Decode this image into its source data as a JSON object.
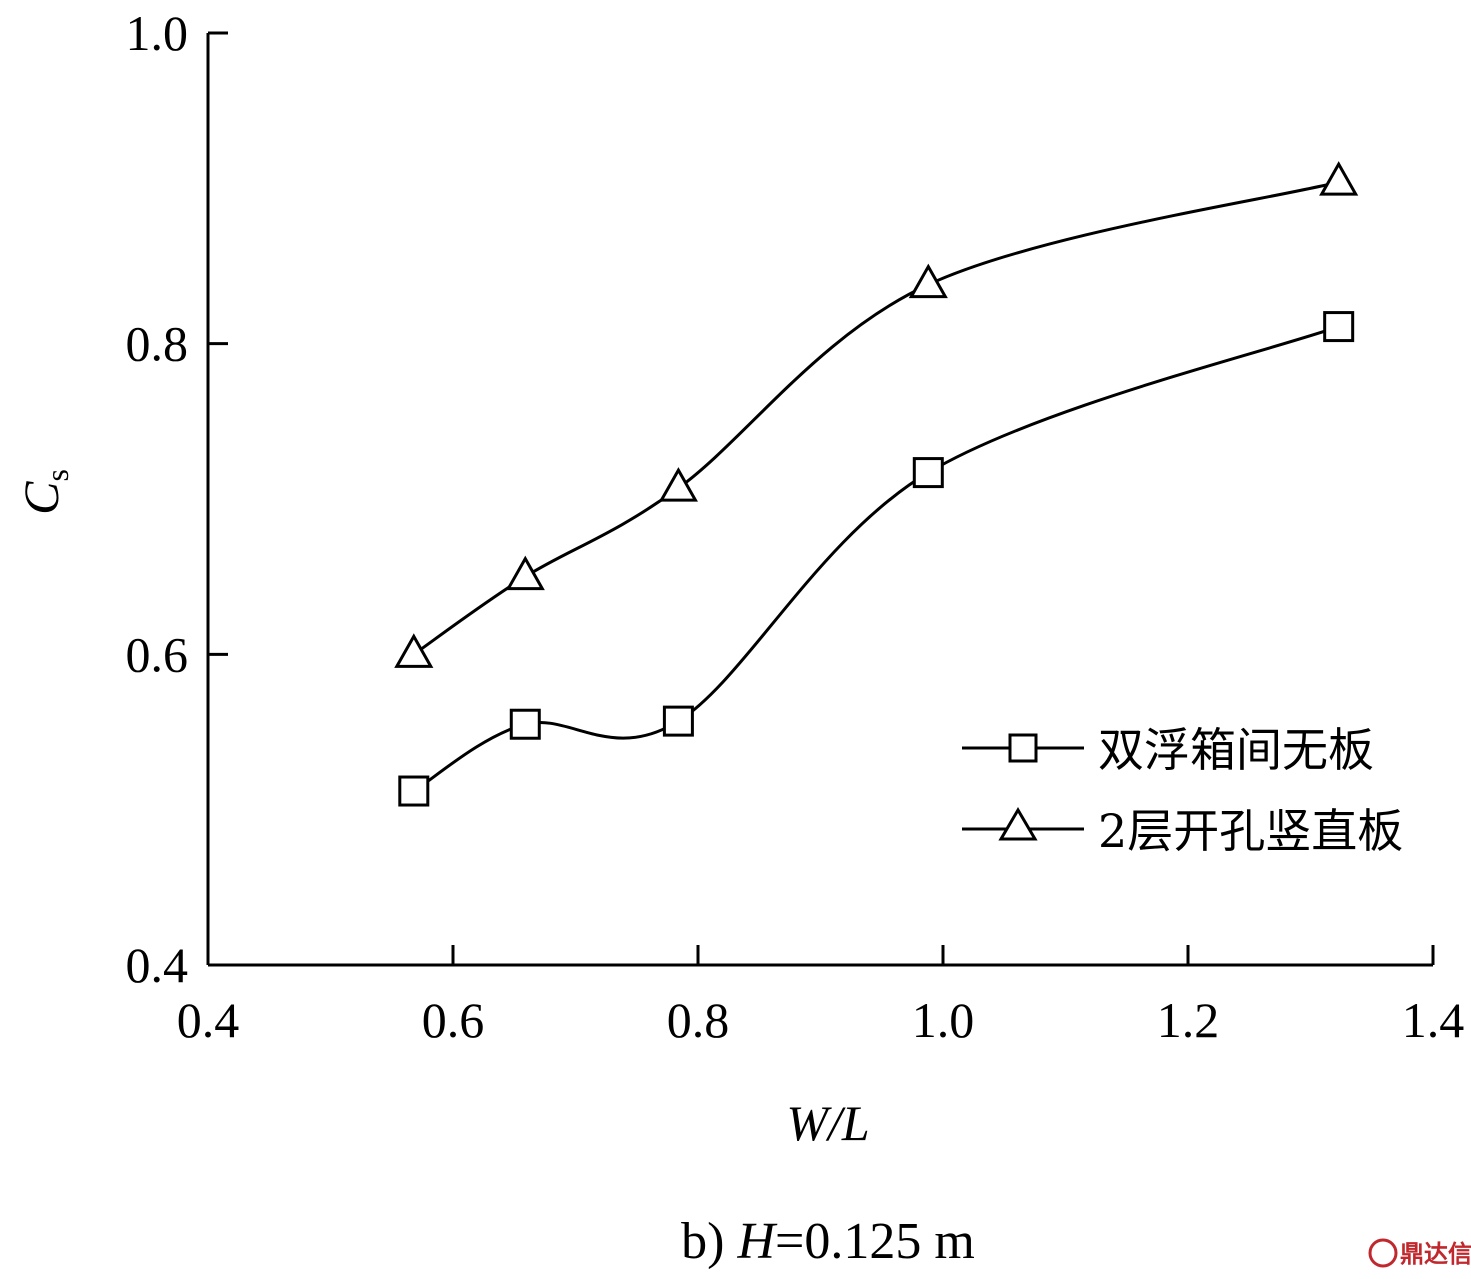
{
  "chart_data": {
    "type": "line",
    "xlabel": "W/L",
    "ylabel": "C",
    "ylabel_sub": "s",
    "xlim": [
      0.4,
      1.4
    ],
    "ylim": [
      0.4,
      1.0
    ],
    "xticks": [
      0.4,
      0.6,
      0.8,
      1.0,
      1.2,
      1.4
    ],
    "xtick_labels": [
      "0.4",
      "0.6",
      "0.8",
      "1.0",
      "1.2",
      "1.4"
    ],
    "yticks": [
      0.4,
      0.6,
      0.8,
      1.0
    ],
    "ytick_labels": [
      "0.4",
      "0.6",
      "0.8",
      "1.0"
    ],
    "grid": false,
    "legend_position": "right",
    "series": [
      {
        "name": "双浮箱间无板",
        "marker": "square",
        "x": [
          0.568,
          0.659,
          0.784,
          0.988,
          1.323
        ],
        "y": [
          0.512,
          0.555,
          0.557,
          0.717,
          0.811
        ]
      },
      {
        "name": "2层开孔竖直板",
        "marker": "triangle",
        "x": [
          0.568,
          0.659,
          0.784,
          0.988,
          1.323
        ],
        "y": [
          0.6,
          0.65,
          0.707,
          0.838,
          0.904
        ]
      }
    ]
  },
  "caption": {
    "prefix": "b) ",
    "variable": "H",
    "rest": "=0.125 m"
  },
  "watermark": "鼎达信",
  "colors": {
    "line": "#000000",
    "watermark": "#c0282d"
  }
}
